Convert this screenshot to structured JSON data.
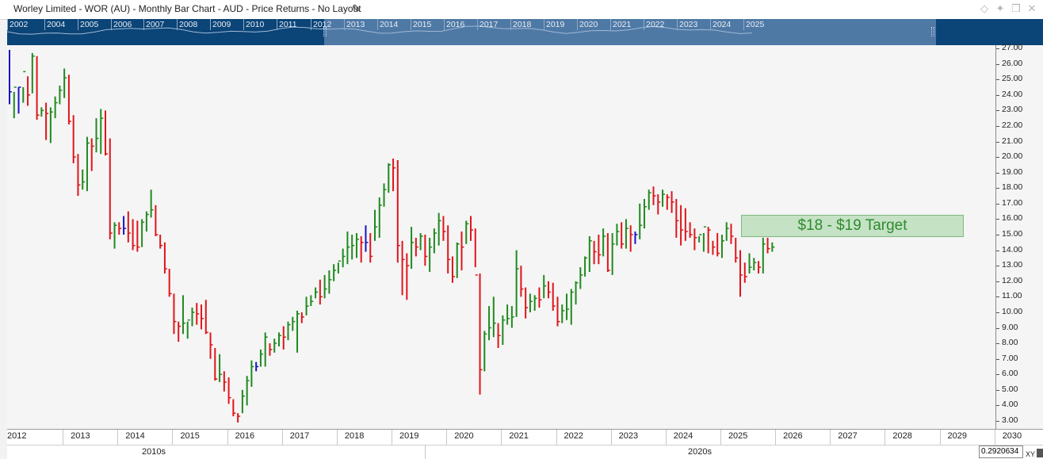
{
  "window": {
    "title": "Worley Limited - WOR (AU) - Monthly Bar Chart - AUD - Price Returns - No Layout",
    "edit_icon": "pencil-icon",
    "icons": [
      "pin-diamond-icon",
      "pin-icon",
      "restore-icon",
      "close-icon"
    ]
  },
  "navigator": {
    "years": [
      "2002",
      "2004",
      "2005",
      "2006",
      "2007",
      "2008",
      "2009",
      "2010",
      "2011",
      "2012",
      "2013",
      "2014",
      "2015",
      "2016",
      "2017",
      "2018",
      "2019",
      "2020",
      "2021",
      "2022",
      "2023",
      "2024",
      "2025"
    ]
  },
  "annotation": {
    "label": "$18 - $19 Target",
    "color": "#2e8b2e",
    "fill": "#c5e2c5"
  },
  "readout": {
    "value": "0.2920634",
    "mode": "XY"
  },
  "colors": {
    "up": "#1f8a1f",
    "down": "#e0141a",
    "neutral": "#1515c8"
  },
  "chart_data": {
    "type": "ohlc-bar",
    "interval": "monthly",
    "ylim": [
      3.0,
      27.0
    ],
    "y_ticks": [
      "3.00",
      "4.00",
      "5.00",
      "6.00",
      "7.00",
      "8.00",
      "9.00",
      "10.00",
      "11.00",
      "12.00",
      "13.00",
      "14.00",
      "15.00",
      "16.00",
      "17.00",
      "18.00",
      "19.00",
      "20.00",
      "21.00",
      "22.00",
      "23.00",
      "24.00",
      "25.00",
      "26.00",
      "27.00"
    ],
    "x_ticks": [
      "2012",
      "2013",
      "2014",
      "2015",
      "2016",
      "2017",
      "2018",
      "2019",
      "2020",
      "2021",
      "2022",
      "2023",
      "2024",
      "2025",
      "2026",
      "2027",
      "2028",
      "2029",
      "2030"
    ],
    "decades": [
      "2010s",
      "2020s"
    ],
    "target_range": [
      18,
      19
    ],
    "start": "2012-01",
    "series": [
      {
        "values": [
          [
            26.9,
            23.4,
            24.2
          ],
          [
            24.2,
            22.5,
            24.5
          ],
          [
            24.5,
            22.8,
            24.5
          ],
          [
            24.5,
            23.5,
            25.5
          ],
          [
            25.2,
            23.3,
            24.0
          ],
          [
            26.7,
            24.1,
            26.5
          ],
          [
            26.5,
            22.4,
            22.7
          ],
          [
            23.2,
            22.6,
            23.0
          ],
          [
            23.5,
            21.1,
            22.8
          ],
          [
            23.2,
            20.9,
            22.9
          ],
          [
            23.9,
            22.5,
            23.5
          ],
          [
            24.6,
            23.4,
            24.3
          ],
          [
            25.7,
            23.8,
            25.1
          ],
          [
            25.3,
            22.1,
            22.3
          ],
          [
            22.7,
            19.6,
            20.0
          ],
          [
            20.2,
            17.5,
            18.2
          ],
          [
            19.2,
            17.9,
            18.4
          ],
          [
            21.3,
            17.8,
            20.9
          ],
          [
            21.2,
            19.1,
            20.7
          ],
          [
            22.5,
            20.3,
            21.2
          ],
          [
            23.1,
            20.2,
            22.5
          ],
          [
            23.0,
            20.1,
            20.2
          ],
          [
            21.2,
            14.7,
            15.1
          ],
          [
            15.8,
            14.1,
            15.6
          ],
          [
            15.8,
            15.0,
            15.4
          ],
          [
            16.2,
            15.0,
            15.4
          ],
          [
            16.5,
            14.5,
            15.1
          ],
          [
            16.0,
            14.0,
            14.3
          ],
          [
            15.9,
            13.9,
            14.2
          ],
          [
            16.0,
            14.2,
            15.8
          ],
          [
            16.5,
            15.2,
            16.3
          ],
          [
            17.9,
            16.1,
            16.6
          ],
          [
            16.9,
            14.9,
            15.0
          ],
          [
            15.0,
            14.1,
            14.3
          ],
          [
            14.5,
            12.5,
            12.8
          ],
          [
            12.8,
            11.0,
            11.2
          ],
          [
            11.2,
            8.6,
            9.4
          ],
          [
            9.4,
            8.1,
            9.1
          ],
          [
            11.1,
            8.6,
            9.3
          ],
          [
            9.4,
            8.3,
            9.5
          ],
          [
            10.3,
            9.1,
            10.0
          ],
          [
            10.6,
            9.2,
            9.9
          ],
          [
            10.5,
            8.9,
            9.6
          ],
          [
            10.8,
            8.6,
            8.7
          ],
          [
            8.7,
            7.0,
            7.9
          ],
          [
            7.7,
            5.6,
            5.7
          ],
          [
            7.3,
            5.5,
            6.0
          ],
          [
            6.2,
            4.9,
            5.5
          ],
          [
            5.8,
            4.1,
            4.5
          ],
          [
            4.4,
            3.3,
            3.5
          ],
          [
            3.5,
            2.9,
            3.3
          ],
          [
            5.0,
            3.5,
            4.6
          ],
          [
            5.9,
            4.0,
            5.6
          ],
          [
            6.9,
            5.2,
            6.5
          ],
          [
            6.8,
            6.2,
            6.5
          ],
          [
            7.6,
            6.5,
            7.3
          ],
          [
            8.7,
            6.5,
            8.4
          ],
          [
            8.0,
            7.2,
            7.6
          ],
          [
            8.3,
            7.4,
            8.0
          ],
          [
            8.7,
            7.8,
            8.5
          ],
          [
            9.1,
            7.6,
            8.4
          ],
          [
            9.4,
            8.2,
            9.2
          ],
          [
            9.7,
            8.8,
            9.4
          ],
          [
            10.1,
            7.4,
            9.9
          ],
          [
            10.0,
            9.3,
            9.7
          ],
          [
            11.0,
            9.8,
            10.4
          ],
          [
            11.1,
            10.4,
            10.7
          ],
          [
            11.6,
            10.9,
            11.3
          ],
          [
            12.1,
            10.5,
            11.0
          ],
          [
            12.4,
            10.9,
            11.5
          ],
          [
            12.7,
            11.2,
            12.1
          ],
          [
            13.1,
            12.0,
            12.7
          ],
          [
            13.2,
            12.5,
            13.3
          ],
          [
            14.1,
            12.9,
            13.6
          ],
          [
            15.2,
            13.1,
            14.2
          ],
          [
            15.0,
            13.4,
            14.3
          ],
          [
            15.1,
            13.5,
            14.7
          ],
          [
            14.9,
            13.2,
            14.5
          ],
          [
            15.6,
            13.9,
            14.5
          ],
          [
            15.1,
            13.2,
            13.6
          ],
          [
            16.6,
            14.6,
            15.5
          ],
          [
            17.4,
            14.8,
            16.9
          ],
          [
            18.3,
            16.8,
            17.9
          ],
          [
            19.6,
            17.7,
            19.5
          ],
          [
            19.9,
            17.8,
            19.3
          ],
          [
            19.8,
            13.2,
            14.3
          ],
          [
            14.6,
            11.1,
            13.4
          ],
          [
            13.8,
            10.8,
            13.0
          ],
          [
            15.5,
            12.8,
            14.5
          ],
          [
            14.8,
            13.6,
            14.2
          ],
          [
            15.1,
            14.0,
            14.9
          ],
          [
            15.0,
            13.0,
            13.6
          ],
          [
            14.8,
            12.6,
            14.2
          ],
          [
            15.4,
            13.8,
            15.1
          ],
          [
            16.4,
            14.3,
            15.9
          ],
          [
            16.2,
            14.6,
            15.2
          ],
          [
            15.6,
            12.5,
            13.4
          ],
          [
            13.6,
            11.9,
            12.3
          ],
          [
            14.5,
            12.2,
            14.4
          ],
          [
            15.2,
            12.7,
            14.2
          ],
          [
            15.9,
            14.4,
            15.7
          ],
          [
            16.2,
            14.6,
            15.3
          ],
          [
            15.4,
            12.9,
            12.4
          ],
          [
            12.5,
            4.7,
            6.3
          ],
          [
            8.8,
            6.2,
            8.6
          ],
          [
            10.4,
            8.2,
            9.0
          ],
          [
            11.0,
            8.4,
            9.3
          ],
          [
            9.3,
            7.7,
            8.5
          ],
          [
            9.8,
            7.9,
            9.5
          ],
          [
            10.5,
            9.2,
            9.6
          ],
          [
            10.4,
            9.0,
            9.7
          ],
          [
            14.0,
            9.7,
            12.8
          ],
          [
            13.0,
            11.0,
            11.5
          ],
          [
            11.6,
            9.6,
            10.3
          ],
          [
            11.2,
            10.0,
            10.7
          ],
          [
            11.1,
            10.1,
            10.9
          ],
          [
            11.6,
            10.3,
            10.8
          ],
          [
            12.4,
            10.9,
            11.7
          ],
          [
            12.0,
            10.9,
            11.3
          ],
          [
            11.9,
            10.1,
            10.4
          ],
          [
            11.0,
            9.1,
            9.4
          ],
          [
            10.5,
            9.3,
            10.1
          ],
          [
            11.2,
            9.5,
            10.2
          ],
          [
            11.5,
            9.2,
            11.3
          ],
          [
            12.0,
            10.5,
            11.9
          ],
          [
            12.9,
            11.5,
            12.4
          ],
          [
            13.6,
            12.3,
            13.5
          ],
          [
            14.9,
            12.6,
            14.6
          ],
          [
            14.6,
            13.1,
            13.9
          ],
          [
            15.0,
            13.1,
            13.7
          ],
          [
            15.4,
            13.6,
            14.9
          ],
          [
            15.1,
            12.6,
            12.7
          ],
          [
            15.1,
            12.4,
            14.4
          ],
          [
            15.7,
            14.3,
            15.2
          ],
          [
            15.8,
            14.1,
            14.4
          ],
          [
            16.0,
            14.1,
            15.4
          ],
          [
            15.6,
            13.9,
            15.0
          ],
          [
            15.2,
            14.4,
            15.0
          ],
          [
            17.0,
            14.7,
            15.6
          ],
          [
            17.3,
            15.4,
            16.8
          ],
          [
            17.9,
            16.6,
            17.7
          ],
          [
            18.1,
            16.9,
            17.5
          ],
          [
            17.6,
            16.3,
            17.1
          ],
          [
            17.9,
            16.8,
            17.6
          ],
          [
            17.6,
            16.6,
            17.4
          ],
          [
            17.8,
            16.4,
            17.1
          ],
          [
            17.3,
            14.8,
            15.9
          ],
          [
            16.9,
            14.3,
            15.3
          ],
          [
            16.7,
            14.6,
            15.2
          ],
          [
            15.8,
            14.8,
            15.0
          ],
          [
            15.4,
            14.0,
            14.8
          ],
          [
            14.9,
            14.5,
            15.0
          ],
          [
            15.1,
            13.9,
            15.5
          ],
          [
            15.5,
            13.8,
            15.3
          ],
          [
            14.6,
            13.7,
            14.2
          ],
          [
            15.1,
            13.6,
            13.8
          ],
          [
            15.0,
            13.5,
            14.6
          ],
          [
            15.8,
            14.6,
            15.4
          ],
          [
            15.7,
            14.4,
            14.9
          ],
          [
            14.8,
            13.2,
            13.5
          ],
          [
            14.0,
            11.0,
            12.4
          ],
          [
            13.2,
            11.9,
            12.3
          ],
          [
            13.8,
            12.5,
            12.9
          ],
          [
            13.5,
            12.7,
            13.2
          ],
          [
            13.3,
            12.5,
            12.9
          ],
          [
            14.8,
            12.5,
            14.4
          ],
          [
            14.8,
            13.8,
            14.1
          ],
          [
            14.5,
            13.9,
            14.2
          ]
        ]
      }
    ]
  }
}
